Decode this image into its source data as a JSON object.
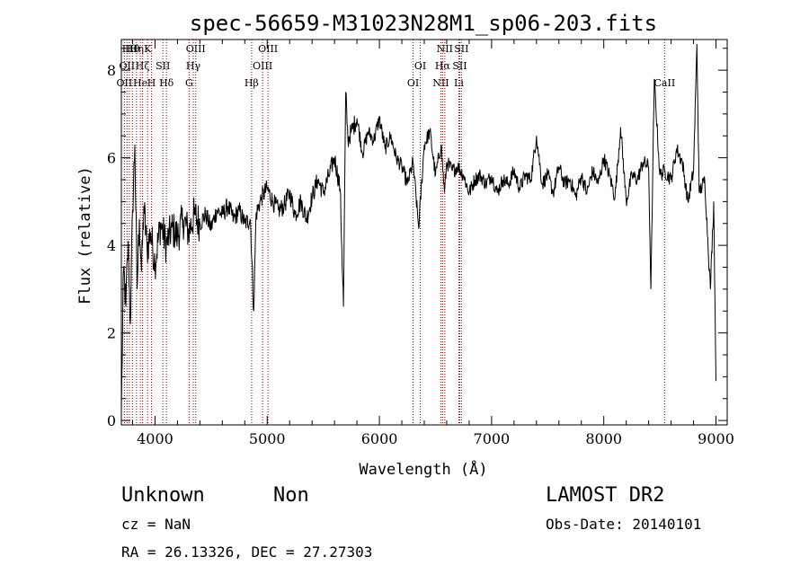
{
  "chart_data": {
    "type": "line",
    "title": "spec-56659-M31023N28M1_sp06-203.fits",
    "xlabel": "Wavelength (Å)",
    "ylabel": "Flux (relative)",
    "xlim": [
      3700,
      9100
    ],
    "ylim": [
      -0.1,
      8.7
    ],
    "xticks": [
      4000,
      5000,
      6000,
      7000,
      8000,
      9000
    ],
    "yticks": [
      0,
      2,
      4,
      6,
      8
    ],
    "grid": false,
    "series": [
      {
        "values_x": [
          3700,
          3720,
          3740,
          3760,
          3780,
          3800,
          3820,
          3840,
          3860,
          3880,
          3900,
          3930,
          3960,
          4000,
          4050,
          4100,
          4150,
          4200,
          4250,
          4300,
          4350,
          4400,
          4450,
          4500,
          4550,
          4600,
          4650,
          4700,
          4750,
          4800,
          4850,
          4880,
          4900,
          4950,
          5000,
          5050,
          5100,
          5150,
          5200,
          5250,
          5300,
          5350,
          5400,
          5450,
          5500,
          5550,
          5600,
          5650,
          5680,
          5700,
          5720,
          5750,
          5800,
          5850,
          5900,
          5950,
          6000,
          6050,
          6100,
          6150,
          6200,
          6250,
          6300,
          6350,
          6400,
          6450,
          6500,
          6550,
          6580,
          6600,
          6650,
          6700,
          6750,
          6800,
          6850,
          6900,
          6950,
          7000,
          7050,
          7100,
          7150,
          7200,
          7250,
          7300,
          7350,
          7400,
          7450,
          7500,
          7550,
          7600,
          7650,
          7700,
          7750,
          7800,
          7850,
          7900,
          7950,
          8000,
          8050,
          8100,
          8150,
          8200,
          8250,
          8300,
          8350,
          8400,
          8420,
          8450,
          8500,
          8542,
          8600,
          8650,
          8700,
          8750,
          8800,
          8830,
          8850,
          8900,
          8950,
          8980,
          9000
        ],
        "values_y": [
          0.2,
          3.5,
          2.6,
          4.1,
          2.2,
          4.8,
          6.3,
          3.0,
          4.6,
          3.4,
          4.9,
          3.9,
          4.3,
          3.6,
          4.5,
          4.0,
          4.4,
          4.2,
          4.6,
          4.3,
          4.7,
          4.5,
          4.7,
          4.4,
          4.8,
          4.7,
          4.9,
          4.6,
          4.8,
          4.5,
          4.6,
          2.5,
          4.7,
          5.1,
          5.3,
          5.0,
          4.8,
          4.9,
          5.2,
          4.7,
          5.0,
          4.6,
          5.1,
          5.5,
          5.2,
          5.6,
          6.0,
          5.3,
          2.6,
          7.5,
          6.4,
          6.6,
          6.9,
          6.1,
          6.6,
          6.4,
          6.9,
          6.2,
          6.5,
          6.0,
          5.8,
          5.4,
          5.9,
          4.4,
          6.3,
          6.6,
          5.6,
          6.3,
          5.2,
          5.9,
          5.7,
          5.8,
          5.6,
          5.2,
          5.5,
          5.6,
          5.4,
          5.6,
          5.2,
          5.5,
          5.4,
          5.7,
          5.3,
          5.6,
          5.5,
          6.5,
          5.4,
          5.6,
          5.2,
          5.8,
          5.4,
          5.5,
          5.1,
          5.6,
          5.2,
          5.7,
          5.4,
          6.0,
          5.6,
          5.1,
          6.7,
          5.0,
          5.6,
          5.5,
          5.9,
          5.8,
          3.0,
          7.8,
          5.6,
          5.7,
          5.5,
          6.2,
          5.9,
          5.0,
          5.7,
          8.6,
          5.2,
          5.5,
          3.0,
          5.0,
          0.9
        ],
        "color": "#000000"
      }
    ],
    "lines": [
      {
        "x": 3727,
        "label": "OII"
      },
      {
        "x": 3750,
        "label": "OII"
      },
      {
        "x": 3771,
        "label": "Hθ"
      },
      {
        "x": 3798,
        "label": "Hθ"
      },
      {
        "x": 3835,
        "label": "Hη"
      },
      {
        "x": 3869,
        "label": "He"
      },
      {
        "x": 3889,
        "label": "Hζ"
      },
      {
        "x": 3934,
        "label": "K"
      },
      {
        "x": 3969,
        "label": "H"
      },
      {
        "x": 4070,
        "label": "SII"
      },
      {
        "x": 4102,
        "label": "Hδ"
      },
      {
        "x": 4304,
        "label": "G"
      },
      {
        "x": 4341,
        "label": "Hγ"
      },
      {
        "x": 4363,
        "label": "OIII"
      },
      {
        "x": 4861,
        "label": "Hβ"
      },
      {
        "x": 4959,
        "label": "OIII"
      },
      {
        "x": 5007,
        "label": "OIII"
      },
      {
        "x": 6300,
        "label": "OI"
      },
      {
        "x": 6364,
        "label": "OI"
      },
      {
        "x": 6548,
        "label": "NII"
      },
      {
        "x": 6563,
        "label": "Hα"
      },
      {
        "x": 6583,
        "label": "NII"
      },
      {
        "x": 6708,
        "label": "Li"
      },
      {
        "x": 6716,
        "label": "SII"
      },
      {
        "x": 6731,
        "label": "SII"
      },
      {
        "x": 8542,
        "label": "CaII"
      }
    ]
  },
  "footer": {
    "object_class": "Unknown",
    "subclass": "Non",
    "survey": "LAMOST DR2",
    "cz": "cz = NaN",
    "obs_date": "Obs-Date: 20140101",
    "coords": "RA =  26.13326, DEC =  27.27303"
  },
  "colors": {
    "spectrum": "#000000",
    "line_marker": "#8b0000"
  }
}
